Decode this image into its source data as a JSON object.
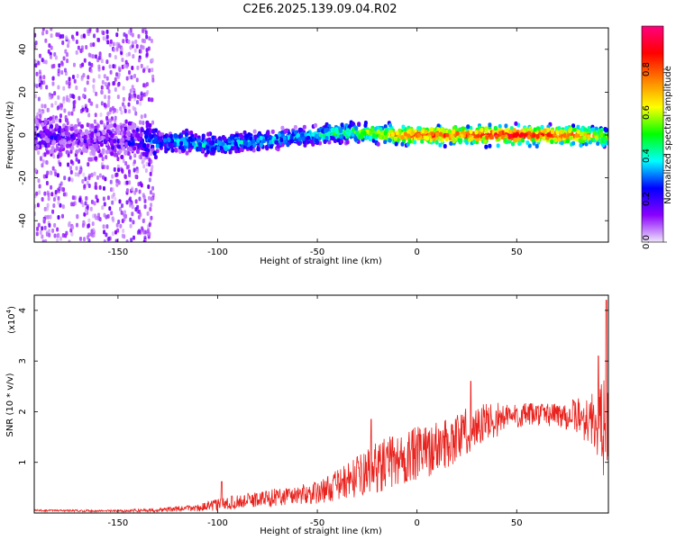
{
  "title": "C2E6.2025.139.09.04.R02",
  "chart_data": [
    {
      "type": "heatmap",
      "xlabel": "Height of straight line (km)",
      "ylabel": "Frequency (Hz)",
      "xlim": [
        -192,
        96
      ],
      "ylim": [
        -50,
        50
      ],
      "xticks": [
        -150,
        -100,
        -50,
        0,
        50
      ],
      "yticks": [
        -40,
        -20,
        0,
        20,
        40
      ],
      "colorbar": {
        "label": "Normalized spectral amplitude",
        "range": [
          0,
          1
        ],
        "ticks": [
          "0.0",
          "0.2",
          "0.4",
          "0.6",
          "0.8"
        ],
        "colors": [
          "#f0e6fb",
          "#8a00ff",
          "#0000ff",
          "#00ffff",
          "#00ff00",
          "#ffff00",
          "#ff8000",
          "#ff0000",
          "#ff007f"
        ]
      },
      "ridge": {
        "x": [
          -190,
          -170,
          -150,
          -135,
          -120,
          -100,
          -80,
          -60,
          -40,
          -25,
          -10,
          0,
          20,
          50,
          80,
          96
        ],
        "center_hz": [
          0,
          -2,
          -3,
          -3,
          -3,
          -5,
          -3,
          -1,
          1,
          1,
          0,
          0,
          0,
          0,
          0,
          -1
        ],
        "amplitude": [
          0.15,
          0.12,
          0.12,
          0.25,
          0.35,
          0.35,
          0.35,
          0.35,
          0.45,
          0.55,
          0.7,
          0.85,
          0.8,
          0.9,
          0.8,
          0.6
        ]
      },
      "scatter_region": {
        "x": [
          -192,
          -132
        ],
        "y": [
          -50,
          50
        ],
        "amplitude": 0.08
      }
    },
    {
      "type": "line",
      "xlabel": "Height of straight line (km)",
      "ylabel": "SNR (10 * v/v)",
      "multiplier": "(x10",
      "multiplier_exp": "4",
      "multiplier_close": ")",
      "xlim": [
        -192,
        96
      ],
      "ylim": [
        0,
        4.3
      ],
      "xticks": [
        -150,
        -100,
        -50,
        0,
        50
      ],
      "yticks": [
        1,
        2,
        3,
        4
      ],
      "color": "#e8221d",
      "trend": {
        "x": [
          -192,
          -150,
          -130,
          -110,
          -100,
          -90,
          -70,
          -50,
          -40,
          -30,
          -20,
          -10,
          0,
          10,
          20,
          30,
          40,
          50,
          60,
          70,
          80,
          90,
          96
        ],
        "y": [
          0.05,
          0.04,
          0.06,
          0.1,
          0.16,
          0.22,
          0.32,
          0.4,
          0.55,
          0.72,
          0.9,
          1.05,
          1.15,
          1.3,
          1.5,
          1.72,
          1.85,
          1.92,
          1.95,
          1.95,
          1.92,
          1.8,
          1.6
        ],
        "noise": [
          0.02,
          0.02,
          0.04,
          0.07,
          0.12,
          0.14,
          0.18,
          0.22,
          0.3,
          0.4,
          0.5,
          0.55,
          0.55,
          0.5,
          0.5,
          0.45,
          0.35,
          0.25,
          0.22,
          0.25,
          0.35,
          0.6,
          1.2
        ]
      },
      "peaks": [
        [
          -98,
          0.62
        ],
        [
          27,
          2.6
        ],
        [
          -23,
          1.85
        ],
        [
          91,
          3.1
        ],
        [
          95,
          4.2
        ]
      ]
    }
  ]
}
